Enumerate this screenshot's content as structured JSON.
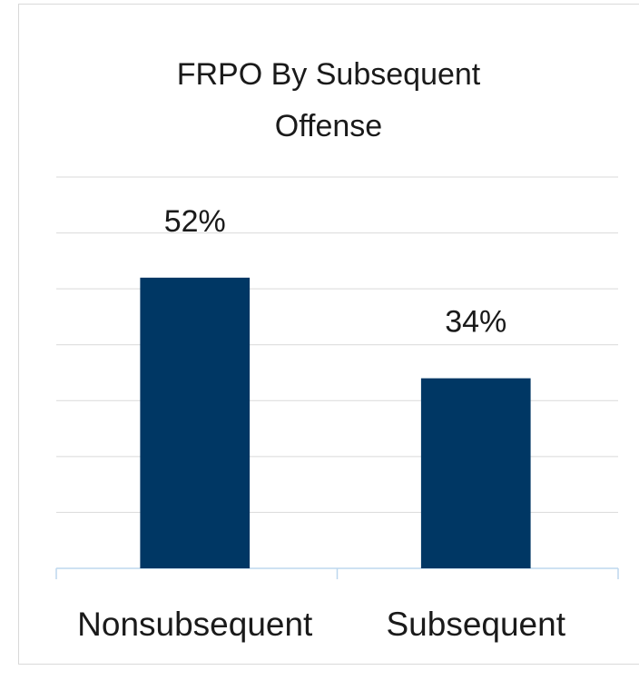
{
  "chart_data": {
    "type": "bar",
    "title": "FRPO By Subsequent Offense",
    "categories": [
      "Nonsubsequent",
      "Subsequent"
    ],
    "values": [
      52,
      34
    ],
    "value_labels": [
      "52%",
      "34%"
    ],
    "color": "#003764",
    "ylim": [
      0,
      70
    ],
    "yticks": [
      0,
      10,
      20,
      30,
      40,
      50,
      60,
      70
    ],
    "grid": true
  }
}
